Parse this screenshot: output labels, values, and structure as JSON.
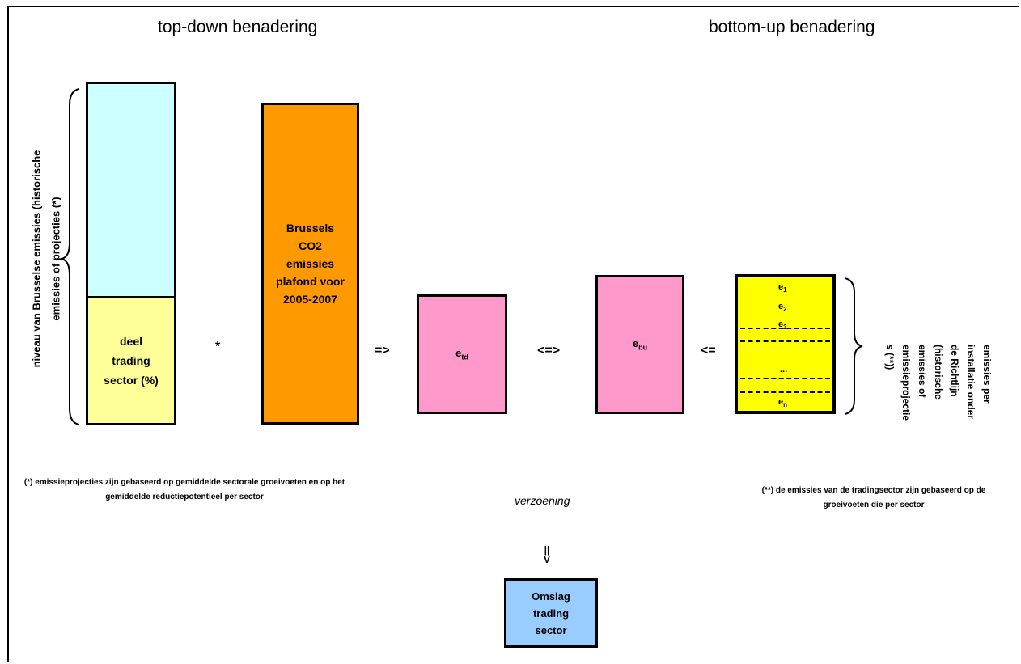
{
  "titles": {
    "top_down": "top-down benadering",
    "bottom_up": "bottom-up benadering"
  },
  "left_axis": {
    "line1": "niveau van Brusselse emissies (historische",
    "line2": "emissies of projecties (*)"
  },
  "share_box": {
    "line1": "deel",
    "line2": "trading",
    "line3": "sector (%)"
  },
  "multiply_symbol": "*",
  "ceiling_box": {
    "line1": "Brussels",
    "line2": "CO2",
    "line3": "emissies",
    "line4": "plafond voor",
    "line5": "2005-2007"
  },
  "arrows": {
    "implies": "=>",
    "equivalent": "<=>",
    "from_right": "<=",
    "down_bar": "||",
    "down_head": "V"
  },
  "box_td": {
    "label": "e",
    "sub": "td"
  },
  "box_bu": {
    "label": "e",
    "sub": "bu"
  },
  "installations": {
    "rows": [
      {
        "label": "e",
        "sub": "1"
      },
      {
        "label": "e",
        "sub": "2"
      },
      {
        "label": "e",
        "sub": "3"
      },
      {
        "label": "...",
        "sub": ""
      },
      {
        "label": "e",
        "sub": "n"
      }
    ]
  },
  "right_axis": {
    "line1": "emissies per",
    "line2": "installatie onder",
    "line3": "de Richtlijn",
    "line4": "(historische",
    "line5": "emissies of",
    "line6": "emissieprojectie",
    "line7": "s (**))"
  },
  "notes": {
    "left": "(*) emissieprojecties zijn gebaseerd op gemiddelde sectorale groeivoeten en op het gemiddelde reductiepotentieel per sector",
    "middle": "verzoening",
    "right": "(**) de emissies van de tradingsector zijn gebaseerd op de groeivoeten die per sector"
  },
  "result_box": {
    "line1": "Omslag",
    "line2": "trading",
    "line3": "sector"
  },
  "colors": {
    "light_blue": "#ccffff",
    "light_yellow": "#ffff99",
    "orange": "#ff9900",
    "pink": "#ff99cc",
    "yellow": "#ffff00",
    "sky_blue": "#99ccff"
  }
}
